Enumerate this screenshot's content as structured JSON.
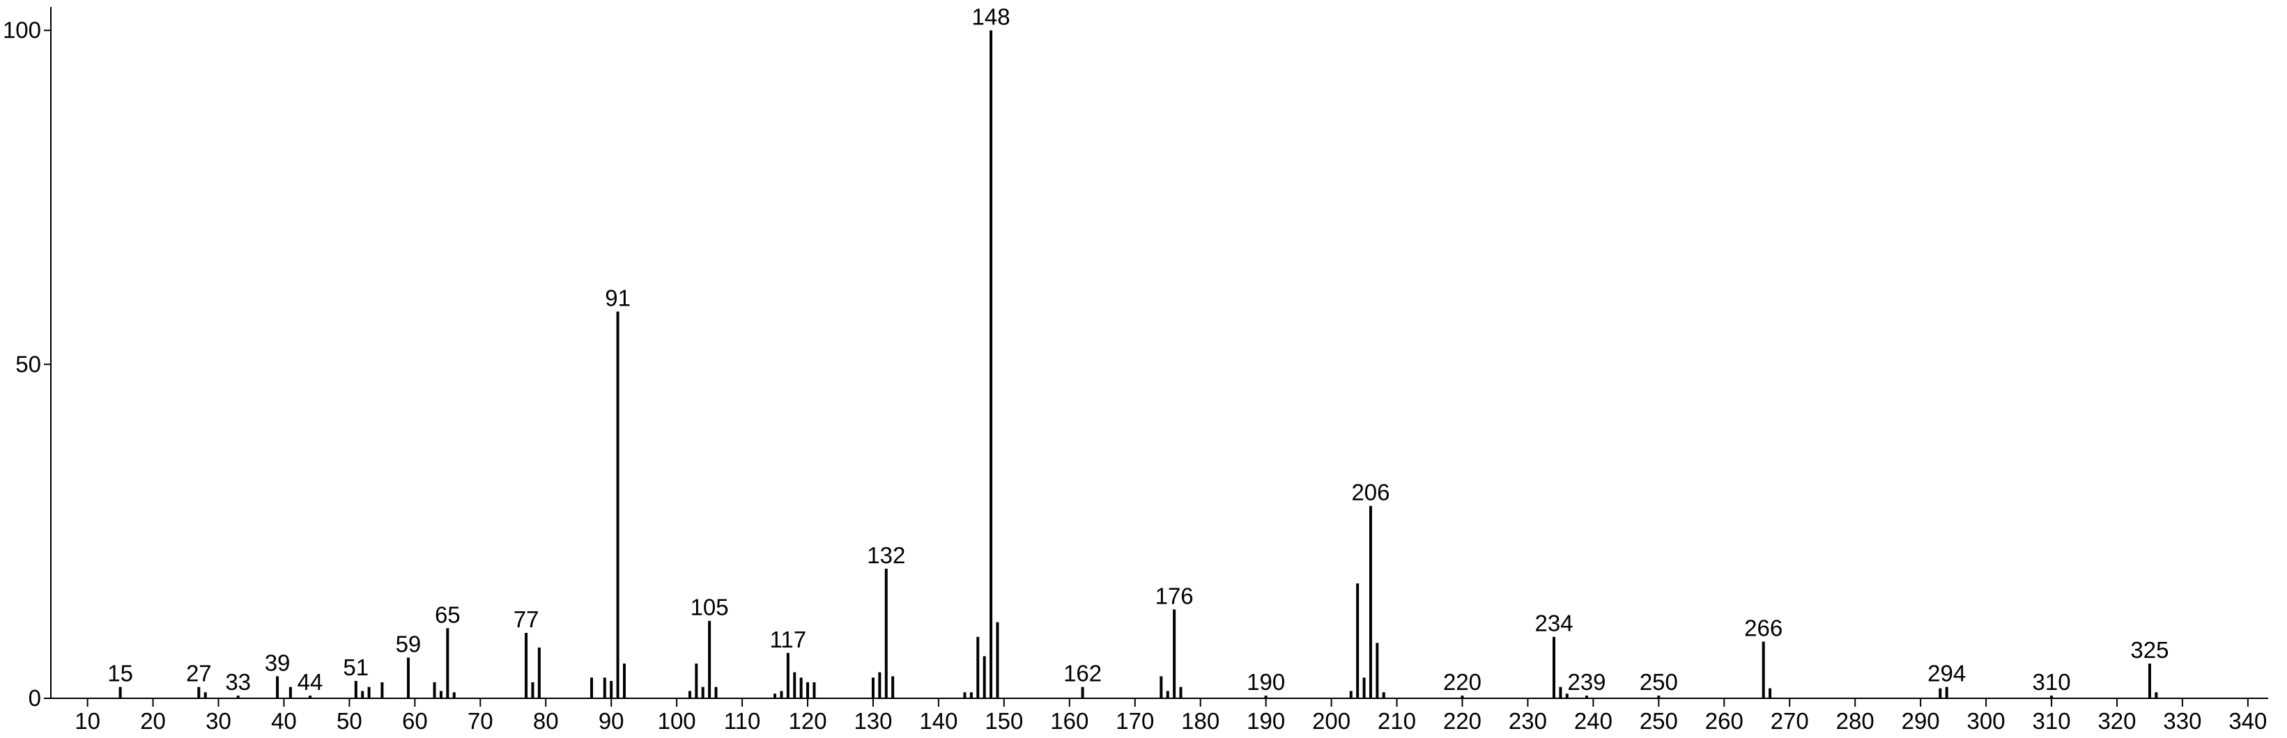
{
  "chart_data": {
    "type": "bar",
    "x": [
      15,
      27,
      28,
      33,
      39,
      41,
      44,
      51,
      52,
      53,
      55,
      59,
      63,
      64,
      65,
      66,
      77,
      78,
      79,
      87,
      89,
      90,
      91,
      92,
      102,
      103,
      104,
      105,
      106,
      115,
      116,
      117,
      118,
      119,
      120,
      121,
      130,
      131,
      132,
      133,
      144,
      145,
      146,
      147,
      148,
      149,
      162,
      174,
      175,
      176,
      177,
      190,
      203,
      204,
      205,
      206,
      207,
      208,
      220,
      234,
      235,
      236,
      239,
      250,
      266,
      267,
      293,
      294,
      310,
      325,
      326
    ],
    "values": [
      1.7,
      1.7,
      0.9,
      0.4,
      3.3,
      1.7,
      0.4,
      2.6,
      1.1,
      1.7,
      2.4,
      6.1,
      2.4,
      1.1,
      10.5,
      0.9,
      9.8,
      2.4,
      7.6,
      3.1,
      3.1,
      2.6,
      57.9,
      5.2,
      1.1,
      5.2,
      1.7,
      11.6,
      1.7,
      0.7,
      1.1,
      6.8,
      3.9,
      3.1,
      2.4,
      2.4,
      3.1,
      3.9,
      19.4,
      3.3,
      0.9,
      0.9,
      9.2,
      6.3,
      100,
      11.4,
      1.7,
      3.3,
      1.1,
      13.3,
      1.7,
      0.4,
      1.1,
      17.2,
      3.1,
      28.8,
      8.3,
      0.9,
      0.4,
      9.2,
      1.7,
      0.7,
      0.4,
      0.4,
      8.5,
      1.5,
      1.5,
      1.7,
      0.4,
      5.2,
      0.9
    ],
    "labeled_peaks": [
      15,
      27,
      33,
      39,
      44,
      51,
      59,
      65,
      77,
      91,
      105,
      117,
      132,
      148,
      162,
      176,
      190,
      206,
      220,
      234,
      239,
      250,
      266,
      294,
      310,
      325
    ],
    "color": "#000000",
    "xlim": [
      4.4,
      343.1
    ],
    "xticks": [
      10,
      20,
      30,
      40,
      50,
      60,
      70,
      80,
      90,
      100,
      110,
      120,
      130,
      140,
      150,
      160,
      170,
      180,
      190,
      200,
      210,
      220,
      230,
      240,
      250,
      260,
      270,
      280,
      290,
      300,
      310,
      320,
      330,
      340
    ],
    "ylim": [
      0,
      103.5
    ],
    "yticks": [
      0,
      50,
      100
    ]
  }
}
